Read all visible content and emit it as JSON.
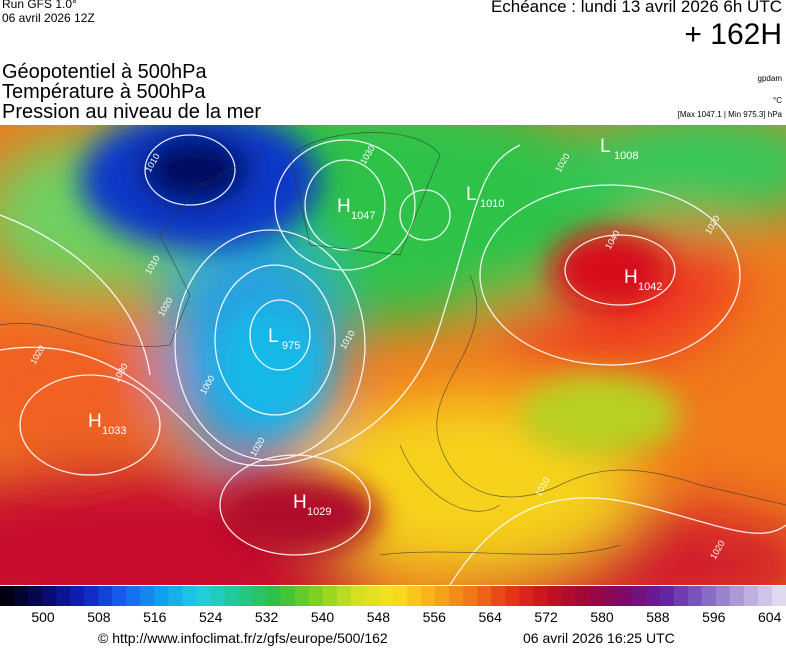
{
  "header": {
    "run": "Run GFS 1.0°",
    "date": "06 avril 2026 12Z",
    "echeance": "Echéance : lundi 13 avril 2026 6h UTC",
    "lead": "+ 162H",
    "fields": [
      "Géopotentiel à 500hPa",
      "Température à 500hPa",
      "Pression au niveau de la mer"
    ],
    "units": [
      "gpdam",
      "°C"
    ],
    "range": "[Max 1047.1 | Min 975.3] hPa"
  },
  "map": {
    "centers": [
      {
        "type": "H",
        "value": "1047"
      },
      {
        "type": "L",
        "value": "975"
      },
      {
        "type": "H",
        "value": "1033"
      },
      {
        "type": "H",
        "value": "1029"
      },
      {
        "type": "H",
        "value": "1042"
      },
      {
        "type": "L",
        "value": "1010"
      },
      {
        "type": "L",
        "value": "1008"
      }
    ],
    "isobar_labels": [
      "1010",
      "1010",
      "1020",
      "1030",
      "1020",
      "1000",
      "1010",
      "1020",
      "1040",
      "1020",
      "1030",
      "1020",
      "1010",
      "1020"
    ]
  },
  "colorbar": {
    "labels": [
      "500",
      "508",
      "516",
      "524",
      "532",
      "540",
      "548",
      "556",
      "564",
      "572",
      "580",
      "588",
      "596",
      "604"
    ]
  },
  "footer": {
    "url": "© http://www.infoclimat.fr/z/gfs/europe/500/162",
    "generated": "06 avril 2026 16:25 UTC"
  }
}
